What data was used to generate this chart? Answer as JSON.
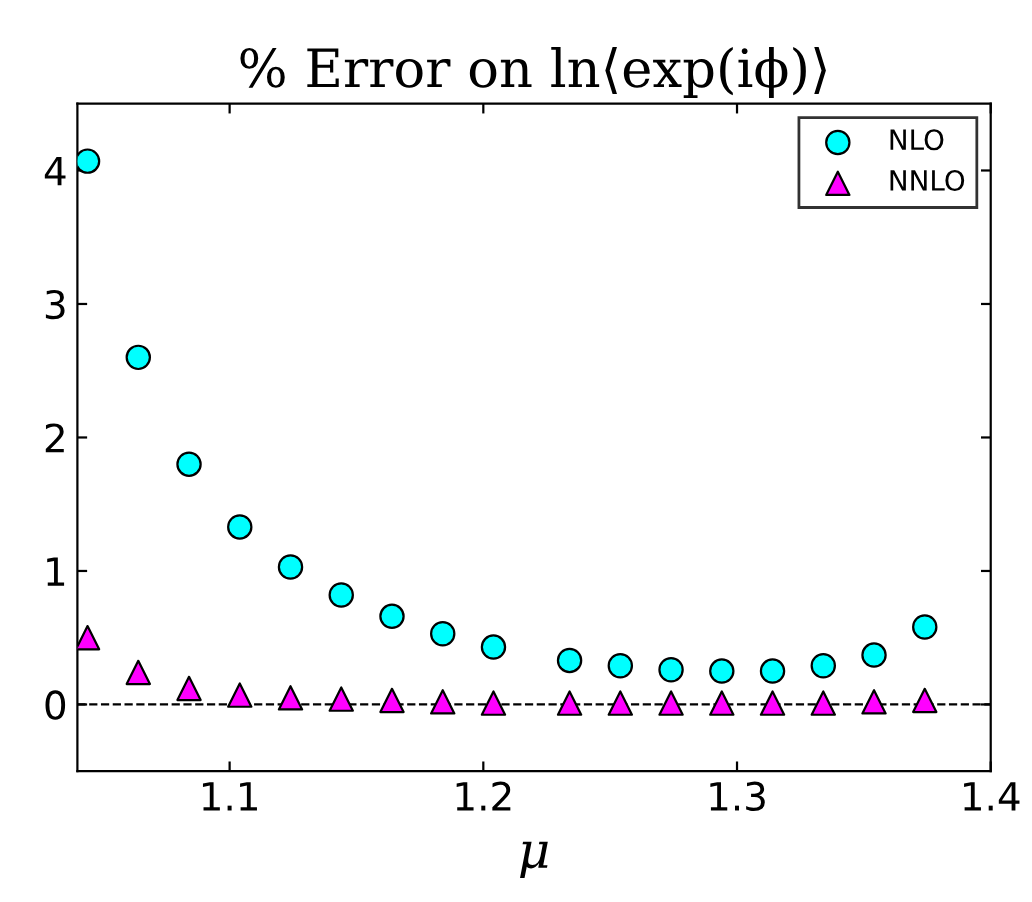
{
  "chart_data": {
    "type": "scatter",
    "title": "% Error on ln⟨exp(iϕ)⟩",
    "xlabel": "μ",
    "x": [
      1.044,
      1.064,
      1.084,
      1.104,
      1.124,
      1.144,
      1.164,
      1.184,
      1.204,
      1.234,
      1.254,
      1.274,
      1.294,
      1.314,
      1.334,
      1.354,
      1.374
    ],
    "series": [
      {
        "name": "NLO",
        "color": "#00ffff",
        "marker": "circle",
        "values": [
          4.07,
          2.6,
          1.8,
          1.33,
          1.03,
          0.82,
          0.66,
          0.53,
          0.43,
          0.33,
          0.29,
          0.26,
          0.25,
          0.25,
          0.29,
          0.37,
          0.58
        ]
      },
      {
        "name": "NNLO",
        "color": "#ff00ff",
        "marker": "triangle",
        "values": [
          0.5,
          0.24,
          0.12,
          0.07,
          0.05,
          0.04,
          0.03,
          0.02,
          0.01,
          0.01,
          0.01,
          0.01,
          0.01,
          0.01,
          0.01,
          0.02,
          0.03
        ]
      }
    ],
    "xlim": [
      1.04,
      1.4
    ],
    "xticks": [
      1.1,
      1.2,
      1.3,
      1.4
    ],
    "ylim": [
      -0.5,
      4.5
    ],
    "yticks": [
      0,
      1,
      2,
      3,
      4
    ],
    "ref_lines": [
      {
        "axis": "y",
        "value": 0,
        "color": "#000000",
        "line_style": "dashed"
      }
    ],
    "legend": "top right",
    "grid": false
  }
}
